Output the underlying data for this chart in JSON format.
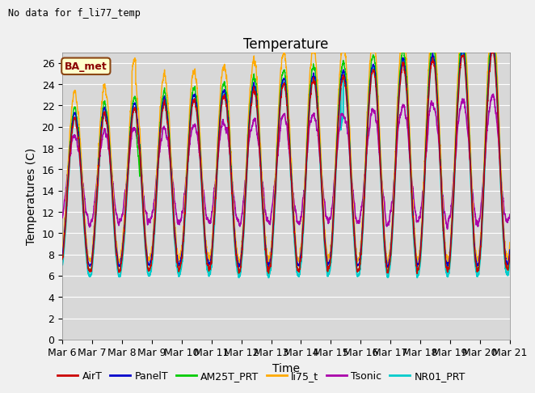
{
  "title": "Temperature",
  "ylabel": "Temperatures (C)",
  "xlabel": "Time",
  "note": "No data for f_li77_temp",
  "legend_label": "BA_met",
  "ylim": [
    0,
    27
  ],
  "yticks": [
    0,
    2,
    4,
    6,
    8,
    10,
    12,
    14,
    16,
    18,
    20,
    22,
    24,
    26
  ],
  "xtick_labels": [
    "Mar 6",
    "Mar 7",
    "Mar 8",
    "Mar 9",
    "Mar 10",
    "Mar 11",
    "Mar 12",
    "Mar 13",
    "Mar 14",
    "Mar 15",
    "Mar 16",
    "Mar 17",
    "Mar 18",
    "Mar 19",
    "Mar 20",
    "Mar 21"
  ],
  "series": {
    "AirT": {
      "color": "#cc0000",
      "lw": 1.0
    },
    "PanelT": {
      "color": "#0000cc",
      "lw": 1.0
    },
    "AM25T_PRT": {
      "color": "#00cc00",
      "lw": 1.0
    },
    "li75_t": {
      "color": "#ffaa00",
      "lw": 1.0
    },
    "Tsonic": {
      "color": "#aa00aa",
      "lw": 1.2
    },
    "NR01_PRT": {
      "color": "#00cccc",
      "lw": 1.5
    }
  },
  "bg_color": "#d8d8d8",
  "fig_color": "#f0f0f0",
  "grid_color": "#ffffff",
  "title_fontsize": 12,
  "label_fontsize": 10,
  "tick_fontsize": 9
}
